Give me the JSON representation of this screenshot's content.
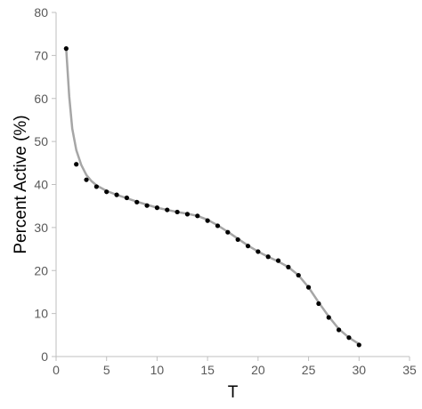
{
  "chart_data": {
    "type": "scatter",
    "title": "",
    "xlabel": "T",
    "ylabel": "Percent Active (%)",
    "xlim": [
      0,
      35
    ],
    "ylim": [
      0,
      80
    ],
    "xticks": [
      0,
      5,
      10,
      15,
      20,
      25,
      30,
      35
    ],
    "yticks": [
      0,
      10,
      20,
      30,
      40,
      50,
      60,
      70,
      80
    ],
    "grid": false,
    "legend": "none",
    "colors": {
      "points": "#000000",
      "fit_line": "#a6a6a6",
      "axis": "#bfbfbf",
      "tick_text": "#595959"
    },
    "series": [
      {
        "type": "scatter",
        "x": [
          1,
          2,
          3,
          4,
          5,
          6,
          7,
          8,
          9,
          10,
          11,
          12,
          13,
          14,
          15,
          16,
          17,
          18,
          19,
          20,
          21,
          22,
          23,
          24,
          25,
          26,
          27,
          28,
          29,
          30
        ],
        "y": [
          71.6,
          44.7,
          41.1,
          39.5,
          38.3,
          37.6,
          36.9,
          35.9,
          35.1,
          34.6,
          34.1,
          33.6,
          33.1,
          32.7,
          31.6,
          30.4,
          28.9,
          27.2,
          25.7,
          24.4,
          23.2,
          22.3,
          20.8,
          18.9,
          16.1,
          12.3,
          9.1,
          6.2,
          4.4,
          2.7
        ]
      },
      {
        "type": "line",
        "x": [
          1,
          1.3,
          1.6,
          2,
          2.5,
          3,
          3.5,
          4,
          5,
          6,
          7,
          8,
          9,
          10,
          11,
          12,
          13,
          14,
          15,
          16,
          17,
          18,
          19,
          20,
          21,
          22,
          23,
          24,
          25,
          26,
          27,
          28,
          29,
          30
        ],
        "y": [
          71.6,
          60.5,
          53.0,
          48.0,
          44.5,
          42.2,
          40.8,
          39.8,
          38.5,
          37.6,
          36.8,
          36.0,
          35.3,
          34.6,
          34.1,
          33.6,
          33.2,
          32.7,
          31.8,
          30.5,
          29.0,
          27.4,
          25.8,
          24.4,
          23.2,
          22.1,
          20.8,
          18.9,
          16.1,
          12.6,
          9.3,
          6.4,
          4.4,
          2.9
        ]
      }
    ]
  }
}
